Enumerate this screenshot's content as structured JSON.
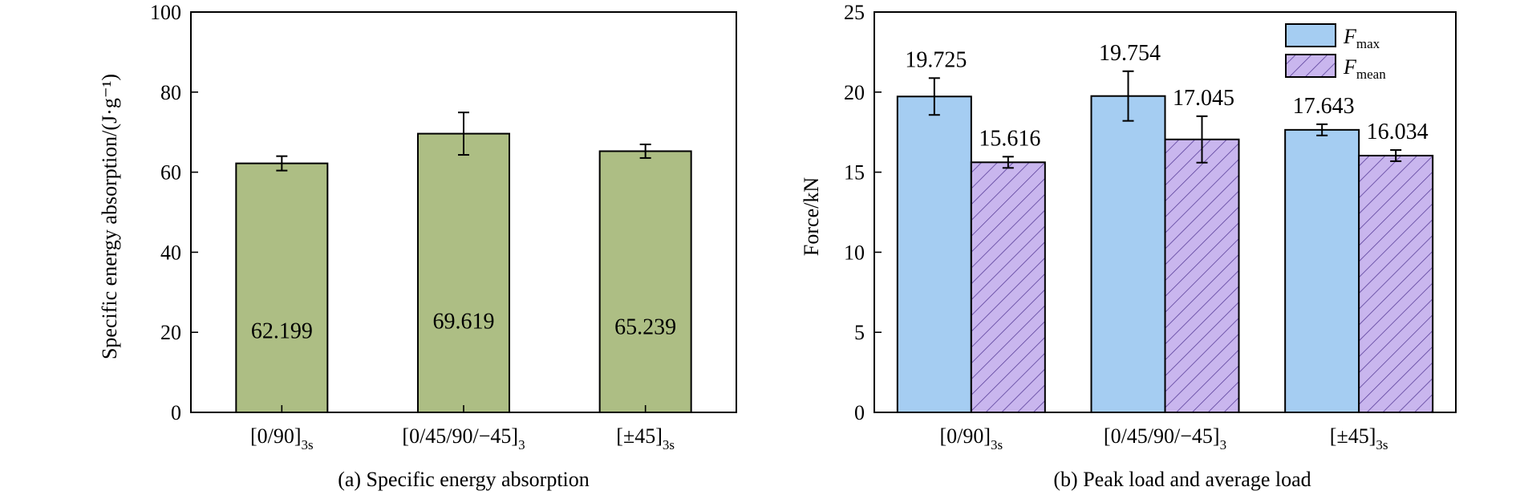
{
  "colors": {
    "sea_bar": "#adbe84",
    "fmax_bar": "#a5cdf2",
    "fmean_bar": "#c9b6ee",
    "hatch": "#5a3f9a"
  },
  "chart_data": [
    {
      "type": "bar",
      "caption": "(a) Specific energy absorption",
      "ylabel": "Specific energy absorption/(J·g⁻¹)",
      "categories": [
        {
          "main": "[0/90]",
          "sub": "3s"
        },
        {
          "main": "[0/45/90/−45]",
          "sub": "3"
        },
        {
          "main": "[±45]",
          "sub": "3s"
        }
      ],
      "ylim": [
        0,
        100
      ],
      "yticks": [
        0,
        20,
        40,
        60,
        80,
        100
      ],
      "series": [
        {
          "values": [
            62.199,
            69.619,
            65.239
          ],
          "labels": [
            "62.199",
            "69.619",
            "65.239"
          ],
          "errors": [
            1.8,
            5.3,
            1.7
          ]
        }
      ]
    },
    {
      "type": "bar",
      "caption": "(b)  Peak load and average load",
      "ylabel": "Force/kN",
      "categories": [
        {
          "main": "[0/90]",
          "sub": "3s"
        },
        {
          "main": "[0/45/90/−45]",
          "sub": "3"
        },
        {
          "main": "[±45]",
          "sub": "3s"
        }
      ],
      "ylim": [
        0,
        25
      ],
      "yticks": [
        0,
        5,
        10,
        15,
        20,
        25
      ],
      "legend_position": "top-right",
      "series": [
        {
          "name": "F",
          "name_sub": "max",
          "values": [
            19.725,
            19.754,
            17.643
          ],
          "labels": [
            "19.725",
            "19.754",
            "17.643"
          ],
          "errors": [
            1.15,
            1.55,
            0.35
          ]
        },
        {
          "name": "F",
          "name_sub": "mean",
          "values": [
            15.616,
            17.045,
            16.034
          ],
          "labels": [
            "15.616",
            "17.045",
            "16.034"
          ],
          "errors": [
            0.35,
            1.45,
            0.35
          ]
        }
      ]
    }
  ]
}
